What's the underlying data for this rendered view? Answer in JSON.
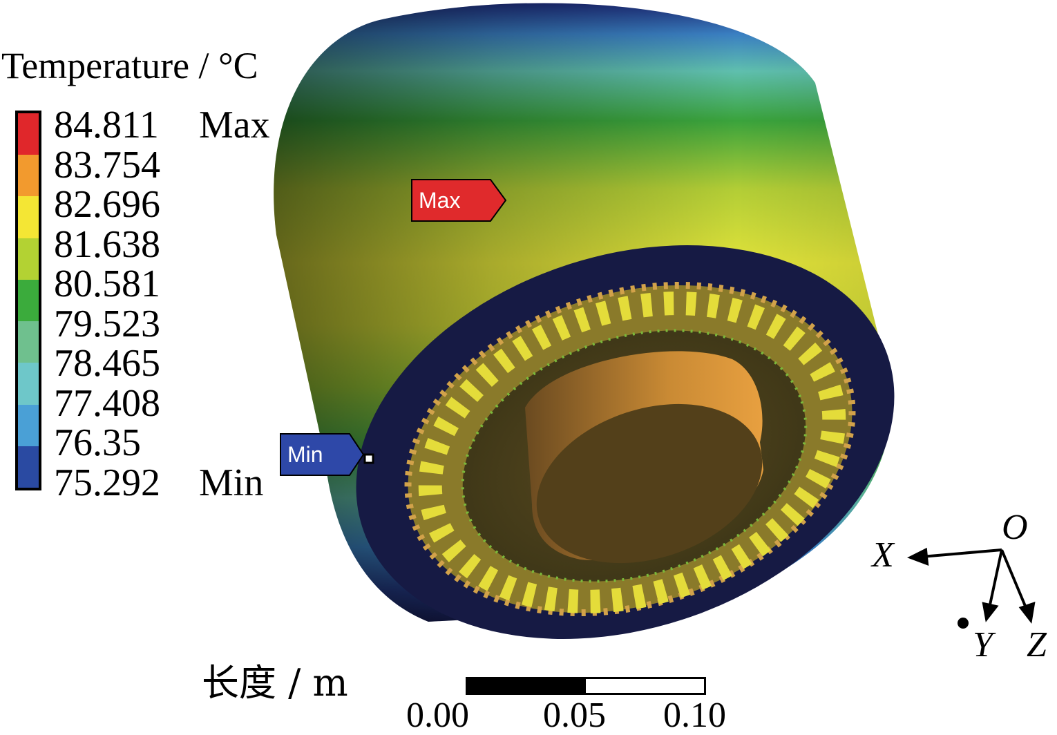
{
  "legend": {
    "title": "Temperature / °C",
    "values": [
      "84.811",
      "83.754",
      "82.696",
      "81.638",
      "80.581",
      "79.523",
      "78.465",
      "77.408",
      "76.35",
      "75.292"
    ],
    "max_tag": "Max",
    "min_tag": "Min",
    "colors": [
      "#e0272b",
      "#f29a2e",
      "#f4e634",
      "#b3d233",
      "#3bab3c",
      "#6fc08e",
      "#6ec7c9",
      "#4aa0d6",
      "#2a4aa2"
    ]
  },
  "markers": {
    "max_label": "Max",
    "min_label": "Min"
  },
  "axes": {
    "origin": "O",
    "x": "X",
    "y": "Y",
    "z": "Z"
  },
  "scale": {
    "title": "长度 / m",
    "ticks": [
      "0.00",
      "0.05",
      "0.10"
    ]
  }
}
